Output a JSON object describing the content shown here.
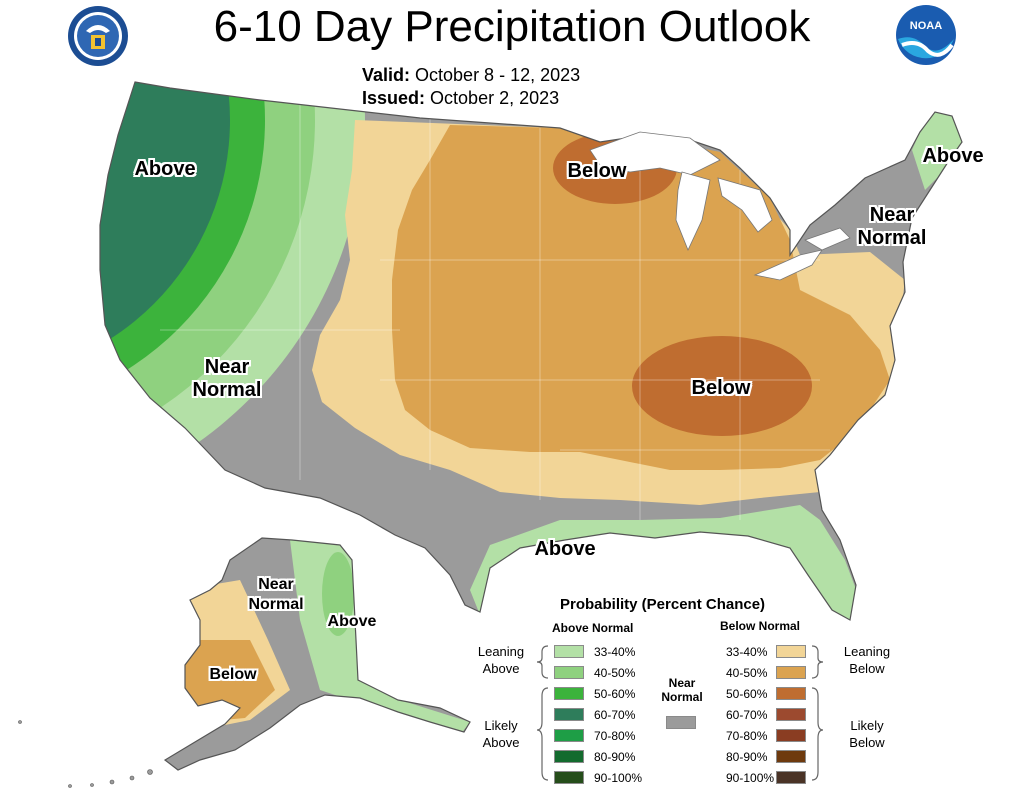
{
  "title": "6-10 Day Precipitation Outlook",
  "valid": {
    "label": "Valid:",
    "value": "October 8 - 12, 2023"
  },
  "issued": {
    "label": "Issued:",
    "value": "October 2, 2023"
  },
  "map_labels": {
    "nw_above": "Above",
    "west_near_normal_1": "Near",
    "west_near_normal_2": "Normal",
    "gulf_above": "Above",
    "midwest_below": "Below",
    "ohio_valley_below": "Below",
    "new_england_above": "Above",
    "northeast_near_normal_1": "Near",
    "northeast_near_normal_2": "Normal",
    "alaska_near_normal_1": "Near",
    "alaska_near_normal_2": "Normal",
    "alaska_above": "Above",
    "alaska_below": "Below"
  },
  "legend": {
    "title": "Probability (Percent Chance)",
    "above_header": "Above Normal",
    "below_header": "Below Normal",
    "near_normal_1": "Near",
    "near_normal_2": "Normal",
    "leaning_above_1": "Leaning",
    "leaning_above_2": "Above",
    "likely_above_1": "Likely",
    "likely_above_2": "Above",
    "leaning_below_1": "Leaning",
    "leaning_below_2": "Below",
    "likely_below_1": "Likely",
    "likely_below_2": "Below",
    "above_levels": [
      "33-40%",
      "40-50%",
      "50-60%",
      "60-70%",
      "70-80%",
      "80-90%",
      "90-100%"
    ],
    "below_levels": [
      "33-40%",
      "40-50%",
      "50-60%",
      "60-70%",
      "70-80%",
      "80-90%",
      "90-100%"
    ],
    "above_colors": [
      "#b3e0a6",
      "#8fd17f",
      "#3cb33c",
      "#2e7d5b",
      "#1e9e46",
      "#136b2e",
      "#254d1a"
    ],
    "below_colors": [
      "#f2d597",
      "#dba350",
      "#bf6d30",
      "#9c4a2f",
      "#8a3d22",
      "#6e3a0e",
      "#4a3326"
    ],
    "near_normal_color": "#9b9b9b"
  },
  "colors": {
    "near_normal": "#9b9b9b",
    "above_33_40": "#b3e0a6",
    "above_40_50": "#8fd17f",
    "above_50_60": "#3cb33c",
    "above_60_70": "#2e7d5b",
    "below_33_40": "#f2d597",
    "below_40_50": "#dba350",
    "below_50_60": "#bf6d30"
  },
  "logos": {
    "left": "commerce-seal-icon",
    "right": "noaa-logo-icon"
  }
}
